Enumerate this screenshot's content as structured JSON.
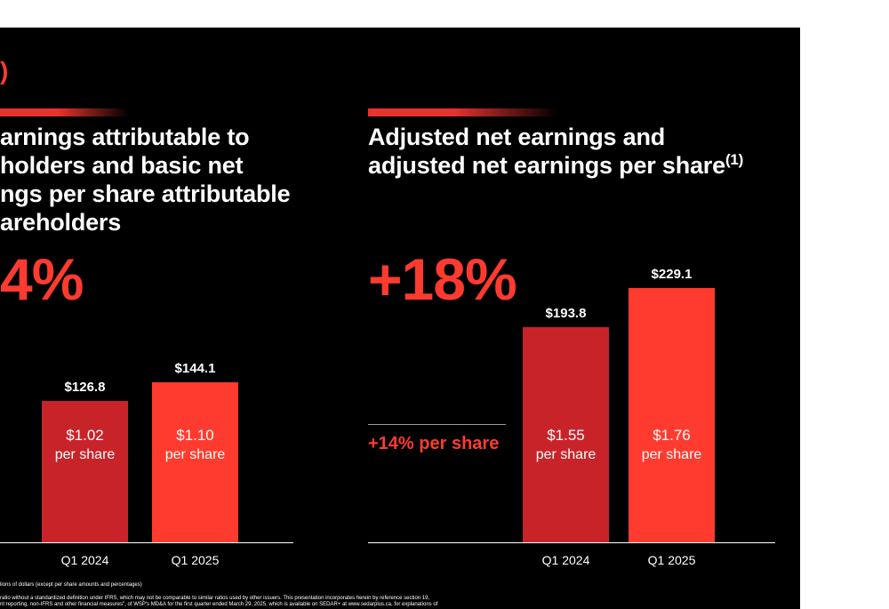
{
  "colors": {
    "accent": "#ff3b30",
    "bar_q1_2024": "#c9232a",
    "bar_q1_2025": "#ff3b30",
    "background": "#000000"
  },
  "top_fragment": ")",
  "left_panel": {
    "heading": "arnings attributable to\nholders and basic net\nngs per share attributable\nareholders",
    "big_change": "4%"
  },
  "right_panel": {
    "heading": "Adjusted net earnings and\nadjusted net earnings per share",
    "heading_sup": "(1)",
    "big_change": "+18%",
    "per_share_change": "+14% per share"
  },
  "chart_data": [
    {
      "type": "bar",
      "categories": [
        "Q1 2024",
        "Q1 2025"
      ],
      "values": [
        126.8,
        144.1
      ],
      "value_labels": [
        "$126.8",
        "$144.1"
      ],
      "per_share_labels": [
        "$1.02",
        "$1.10"
      ],
      "per_share_unit": "per share",
      "ylim": [
        0,
        240
      ]
    },
    {
      "type": "bar",
      "categories": [
        "Q1 2024",
        "Q1 2025"
      ],
      "values": [
        193.8,
        229.1
      ],
      "value_labels": [
        "$193.8",
        "$229.1"
      ],
      "per_share_labels": [
        "$1.55",
        "$1.76"
      ],
      "per_share_unit": "per share",
      "ylim": [
        0,
        240
      ]
    }
  ],
  "footnotes": [
    "lions of dollars (except per share amounts and percentages)",
    "ratio without a standardized definition under IFRS, which may not be comparable to similar ratios used by other issuers. This presentation incorporates herein by reference section 19,",
    "nt reporting, non-IFRS and other financial measures\", of WSP's MD&A for the first quarter ended March 29, 2025, which is available on SEDAR+ at www.sedarplus.ca, for explanations of"
  ]
}
